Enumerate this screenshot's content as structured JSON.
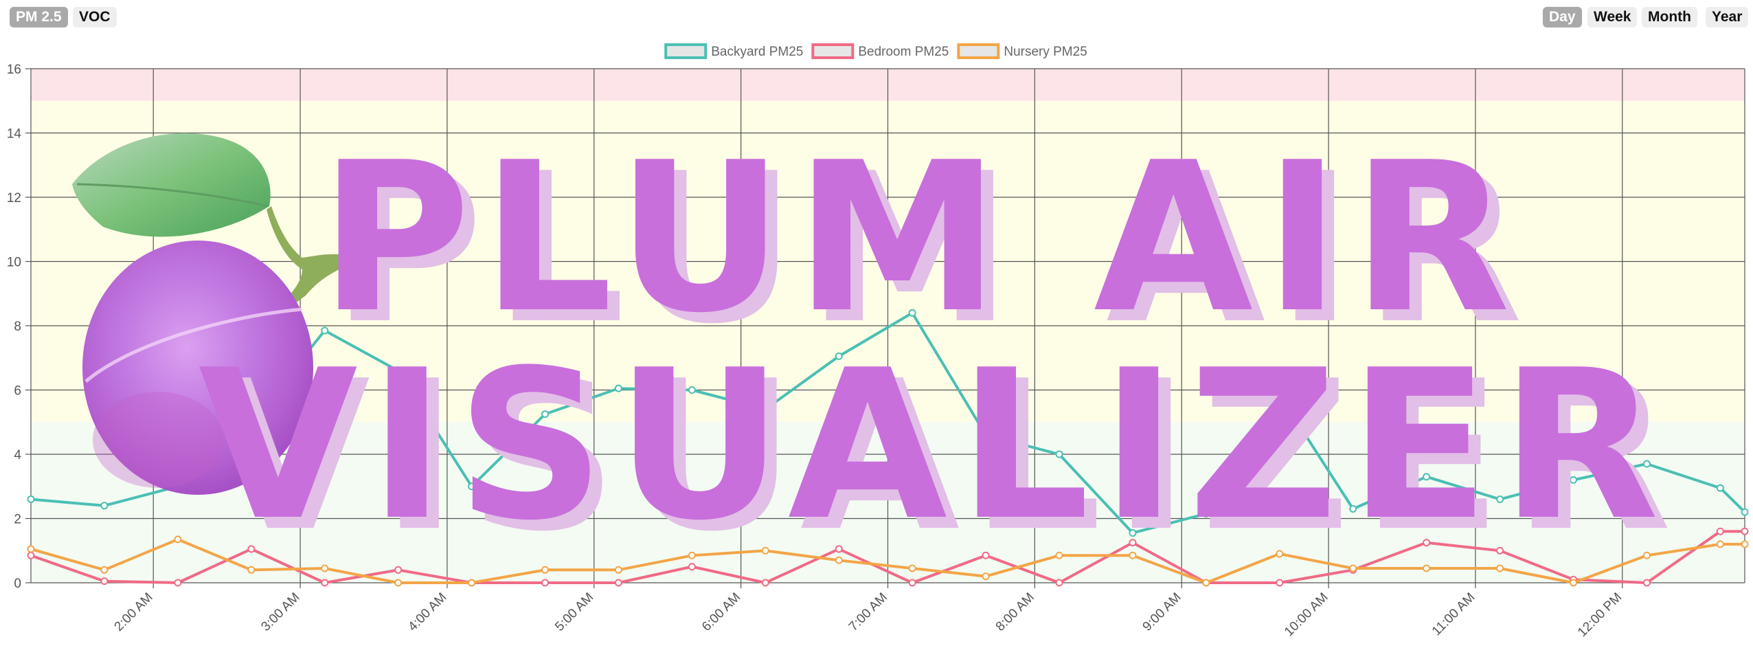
{
  "metric_tabs": [
    {
      "label": "PM 2.5",
      "active": true
    },
    {
      "label": "VOC",
      "active": false
    }
  ],
  "range_tabs": [
    {
      "label": "Day",
      "active": true
    },
    {
      "label": "Week",
      "active": false
    },
    {
      "label": "Month",
      "active": false
    },
    {
      "label": "Year",
      "active": false
    }
  ],
  "banner": {
    "line1": "PLUM AIR",
    "line2": "VISUALIZER"
  },
  "colors": {
    "band_high": "#fde4e8",
    "band_mid": "#fefde6",
    "band_low": "#f3fbf3",
    "grid": "#555555",
    "title": "#c86fdc",
    "title_shadow": "#e2bfe6"
  },
  "icons": [
    "plum-fruit-icon"
  ],
  "chart_data": {
    "type": "line",
    "title": "",
    "xlabel": "",
    "ylabel": "",
    "ylim": [
      0,
      16
    ],
    "yticks": [
      "0",
      "2",
      "4",
      "6",
      "8",
      "10",
      "12",
      "14",
      "16"
    ],
    "xlim": [
      "1:10 AM",
      "12:50 PM"
    ],
    "xtick_labels": [
      "2:00 AM",
      "3:00 AM",
      "4:00 AM",
      "5:00 AM",
      "6:00 AM",
      "7:00 AM",
      "8:00 AM",
      "9:00 AM",
      "10:00 AM",
      "11:00 AM",
      "12:00 PM"
    ],
    "xtick_times": [
      "2:00 AM",
      "3:00 AM",
      "4:00 AM",
      "5:00 AM",
      "6:00 AM",
      "7:00 AM",
      "8:00 AM",
      "9:00 AM",
      "10:00 AM",
      "11:00 AM",
      "12:00 PM"
    ],
    "grid": true,
    "legend_position": "top-center",
    "bands": [
      {
        "from": 15,
        "to": 16,
        "level": "high"
      },
      {
        "from": 5,
        "to": 15,
        "level": "mid"
      },
      {
        "from": 0,
        "to": 5,
        "level": "low"
      }
    ],
    "x": [
      "1:10 AM",
      "1:40 AM",
      "2:10 AM",
      "2:40 AM",
      "3:10 AM",
      "3:40 AM",
      "4:10 AM",
      "4:40 AM",
      "5:10 AM",
      "5:40 AM",
      "6:10 AM",
      "6:40 AM",
      "7:10 AM",
      "7:40 AM",
      "8:10 AM",
      "8:40 AM",
      "9:10 AM",
      "9:40 AM",
      "10:10 AM",
      "10:40 AM",
      "11:10 AM",
      "11:40 AM",
      "12:10 PM",
      "12:40 PM",
      "12:50 PM"
    ],
    "series": [
      {
        "name": "Backyard PM25",
        "color": "#4bbfb4",
        "values": [
          2.6,
          2.4,
          3.0,
          5.0,
          7.85,
          6.6,
          3.0,
          5.25,
          6.05,
          6.0,
          5.4,
          7.05,
          8.4,
          4.6,
          4.0,
          1.55,
          2.15,
          5.85,
          2.3,
          3.3,
          2.6,
          3.2,
          3.7,
          2.95,
          2.2
        ]
      },
      {
        "name": "Bedroom PM25",
        "color": "#f06a86",
        "values": [
          0.85,
          0.05,
          0.0,
          1.05,
          0.0,
          0.4,
          0.0,
          0.0,
          0.0,
          0.5,
          0.0,
          1.05,
          0.0,
          0.85,
          0.0,
          1.25,
          0.0,
          0.0,
          0.4,
          1.25,
          1.0,
          0.1,
          0.0,
          1.6,
          1.6
        ]
      },
      {
        "name": "Nursery PM25",
        "color": "#f3a547",
        "values": [
          1.05,
          0.4,
          1.35,
          0.4,
          0.45,
          0.0,
          0.0,
          0.4,
          0.4,
          0.85,
          1.0,
          0.7,
          0.45,
          0.2,
          0.85,
          0.85,
          0.0,
          0.9,
          0.45,
          0.45,
          0.45,
          0.0,
          0.85,
          1.2,
          1.2
        ]
      }
    ]
  }
}
